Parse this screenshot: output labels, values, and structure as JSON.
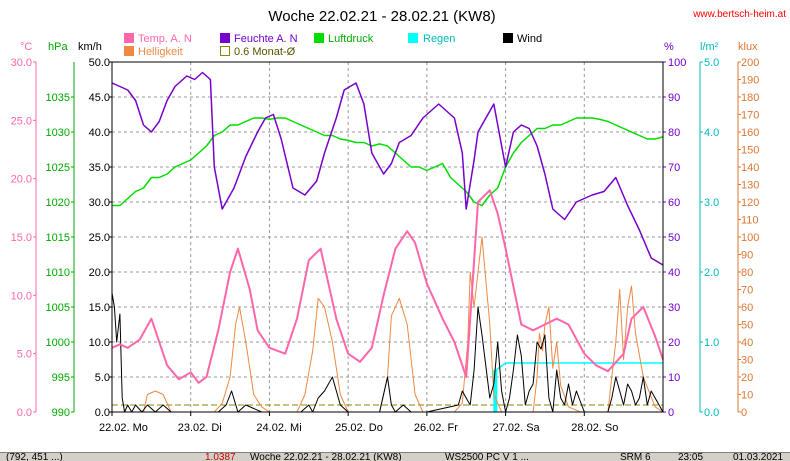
{
  "chart_data": {
    "type": "line",
    "title": "Woche 22.02.21 - 28.02.21 (KW8)",
    "watermark": "www.bertsch-heim.at",
    "axis_units": {
      "temp": "°C",
      "pressure": "hPa",
      "wind": "km/h",
      "humidity": "%",
      "rain": "l/m²",
      "brightness": "klux"
    },
    "axes": {
      "temp": {
        "min": 0,
        "max": 30,
        "step": 5,
        "labels": [
          "0.0",
          "5.0",
          "10.0",
          "15.0",
          "20.0",
          "25.0",
          "30.0"
        ],
        "color": "#ff66aa"
      },
      "pressure": {
        "min": 990,
        "max": 1040,
        "step": 5,
        "labels": [
          "990",
          "995",
          "1000",
          "1005",
          "1010",
          "1015",
          "1020",
          "1025",
          "1030",
          "1035"
        ],
        "color": "#00aa00"
      },
      "wind": {
        "min": 0,
        "max": 50,
        "step": 5,
        "labels": [
          "0.0",
          "5.0",
          "10.0",
          "15.0",
          "20.0",
          "25.0",
          "30.0",
          "35.0",
          "40.0",
          "45.0",
          "50.0"
        ],
        "color": "#000000"
      },
      "humidity": {
        "min": 0,
        "max": 100,
        "step": 10,
        "labels": [
          "0",
          "10",
          "20",
          "30",
          "40",
          "50",
          "60",
          "70",
          "80",
          "90",
          "100"
        ],
        "color": "#7700cc"
      },
      "rain": {
        "min": 0,
        "max": 5,
        "step": 1,
        "labels": [
          "0.0",
          "1.0",
          "2.0",
          "3.0",
          "4.0",
          "5.0"
        ],
        "color": "#00bbbb"
      },
      "brightness": {
        "min": 0,
        "max": 200,
        "step": 10,
        "labels": [
          "0",
          "10",
          "20",
          "30",
          "40",
          "50",
          "60",
          "70",
          "80",
          "90",
          "100",
          "110",
          "120",
          "130",
          "140",
          "150",
          "160",
          "170",
          "180",
          "190",
          "200"
        ],
        "color": "#dd7733"
      }
    },
    "x": {
      "min": 0,
      "max": 7,
      "tick_labels": [
        "22.02.  Mo",
        "23.02.  Di",
        "24.02.  Mi",
        "25.02.  Do",
        "26.02.  Fr",
        "27.02.  Sa",
        "28.02.  So"
      ]
    },
    "legend": [
      {
        "name": "Temp. A. N",
        "color": "#ff66aa",
        "style": "filled"
      },
      {
        "name": "Feuchte A. N",
        "color": "#7700cc",
        "style": "filled"
      },
      {
        "name": "Luftdruck",
        "color": "#00dd00",
        "style": "filled"
      },
      {
        "name": "Regen",
        "color": "#00ffff",
        "style": "filled"
      },
      {
        "name": "Wind",
        "color": "#000000",
        "style": "filled"
      },
      {
        "name": "Helligkeit",
        "color": "#ee8844",
        "style": "filled"
      },
      {
        "name": "0.6 Monat-Ø",
        "color": "#888800",
        "style": "outline"
      }
    ],
    "grid": true,
    "series": [
      {
        "name": "Temp. A. N",
        "axis": "temp",
        "color": "#ff66aa",
        "width": 2,
        "x": [
          0,
          0.1,
          0.2,
          0.35,
          0.5,
          0.7,
          0.85,
          1.0,
          1.1,
          1.2,
          1.35,
          1.5,
          1.6,
          1.75,
          1.85,
          2.0,
          2.2,
          2.35,
          2.5,
          2.65,
          2.85,
          3.0,
          3.15,
          3.3,
          3.45,
          3.6,
          3.75,
          3.85,
          4.0,
          4.2,
          4.35,
          4.5,
          4.55,
          4.65,
          4.8,
          4.9,
          5.0,
          5.2,
          5.35,
          5.5,
          5.65,
          5.8,
          6.0,
          6.15,
          6.3,
          6.5,
          6.6,
          6.75,
          6.9,
          7.0
        ],
        "y": [
          5.5,
          5.8,
          5.5,
          6.2,
          8,
          4,
          2.8,
          3.4,
          2.5,
          3,
          7,
          12,
          14,
          10.5,
          7,
          5.5,
          5,
          8,
          13,
          14,
          8,
          5,
          4.3,
          5.5,
          10,
          14,
          15.5,
          14.5,
          11,
          8,
          6,
          3,
          8,
          18,
          19,
          17,
          14,
          7.5,
          7,
          7.5,
          8,
          7.5,
          5,
          4,
          3.5,
          5,
          8,
          9,
          6.5,
          4.5
        ]
      },
      {
        "name": "Feuchte A. N",
        "axis": "humidity",
        "color": "#7700cc",
        "width": 1.5,
        "x": [
          0,
          0.1,
          0.2,
          0.3,
          0.4,
          0.5,
          0.6,
          0.7,
          0.8,
          0.95,
          1.05,
          1.15,
          1.25,
          1.3,
          1.4,
          1.55,
          1.7,
          1.85,
          1.95,
          2.05,
          2.15,
          2.3,
          2.45,
          2.6,
          2.7,
          2.85,
          2.95,
          3.1,
          3.2,
          3.3,
          3.45,
          3.55,
          3.65,
          3.8,
          3.95,
          4.05,
          4.15,
          4.25,
          4.35,
          4.45,
          4.5,
          4.6,
          4.65,
          4.75,
          4.85,
          5.0,
          5.1,
          5.2,
          5.3,
          5.4,
          5.5,
          5.6,
          5.75,
          5.9,
          6.1,
          6.25,
          6.4,
          6.55,
          6.7,
          6.85,
          7.0
        ],
        "y": [
          94,
          93,
          92,
          89,
          82,
          80,
          83,
          89,
          93,
          96,
          95,
          97,
          95,
          70,
          58,
          64,
          73,
          80,
          84,
          85,
          78,
          64,
          62,
          66,
          74,
          84,
          92,
          94,
          88,
          74,
          68,
          71,
          77,
          79,
          84,
          86,
          88,
          86,
          84,
          74,
          58,
          72,
          80,
          84,
          88,
          70,
          80,
          82,
          81,
          76,
          68,
          58,
          55,
          60,
          62,
          63,
          67,
          59,
          52,
          44,
          42
        ]
      },
      {
        "name": "Luftdruck",
        "axis": "pressure",
        "color": "#00dd00",
        "width": 1.5,
        "x": [
          0,
          0.1,
          0.2,
          0.3,
          0.4,
          0.5,
          0.6,
          0.7,
          0.8,
          0.9,
          1.0,
          1.1,
          1.2,
          1.3,
          1.4,
          1.5,
          1.6,
          1.7,
          1.8,
          1.9,
          2.0,
          2.1,
          2.2,
          2.3,
          2.4,
          2.5,
          2.6,
          2.7,
          2.8,
          2.9,
          3.0,
          3.1,
          3.2,
          3.3,
          3.4,
          3.5,
          3.6,
          3.7,
          3.8,
          3.9,
          4.0,
          4.1,
          4.2,
          4.3,
          4.4,
          4.5,
          4.6,
          4.7,
          4.8,
          4.9,
          5.0,
          5.1,
          5.2,
          5.3,
          5.4,
          5.5,
          5.6,
          5.7,
          5.8,
          5.9,
          6.0,
          6.1,
          6.2,
          6.3,
          6.4,
          6.5,
          6.6,
          6.7,
          6.8,
          6.9,
          7.0
        ],
        "y": [
          1019.5,
          1019.5,
          1020.5,
          1021.5,
          1022,
          1023.5,
          1023.5,
          1024,
          1025,
          1025.5,
          1026,
          1027,
          1028,
          1029.5,
          1030,
          1031,
          1031,
          1031.5,
          1032,
          1032,
          1031.8,
          1032,
          1032,
          1031.5,
          1031,
          1030.5,
          1030,
          1029.5,
          1029.5,
          1029,
          1028.8,
          1028.5,
          1028.5,
          1028,
          1028.3,
          1028,
          1027,
          1026,
          1025,
          1025,
          1024.5,
          1025,
          1025.5,
          1023.5,
          1022.5,
          1021.5,
          1020,
          1019.5,
          1021,
          1022,
          1025,
          1027,
          1028.5,
          1029.5,
          1030.5,
          1030.5,
          1031,
          1031,
          1031.5,
          1032,
          1032,
          1032,
          1031.8,
          1031.5,
          1031,
          1030.5,
          1030,
          1029.5,
          1029,
          1029,
          1029.3
        ]
      },
      {
        "name": "Helligkeit",
        "axis": "brightness",
        "color": "#ee8844",
        "width": 1,
        "x": [
          0,
          0.4,
          0.45,
          0.55,
          0.65,
          0.75,
          1.3,
          1.4,
          1.5,
          1.57,
          1.62,
          1.7,
          1.75,
          1.8,
          1.9,
          2.0,
          2.35,
          2.45,
          2.55,
          2.62,
          2.7,
          2.8,
          2.9,
          3.0,
          3.4,
          3.5,
          3.55,
          3.65,
          3.75,
          3.85,
          3.95,
          4.35,
          4.45,
          4.52,
          4.55,
          4.6,
          4.65,
          4.7,
          4.75,
          4.8,
          4.85,
          4.95,
          5.35,
          5.4,
          5.43,
          5.47,
          5.5,
          5.55,
          5.6,
          5.65,
          5.7,
          5.8,
          5.95,
          6.3,
          6.35,
          6.4,
          6.45,
          6.5,
          6.55,
          6.6,
          6.65,
          6.75,
          6.9,
          7.0
        ],
        "y": [
          0,
          0,
          10,
          12,
          10,
          0,
          0,
          5,
          20,
          50,
          60,
          40,
          25,
          10,
          3,
          0,
          0,
          10,
          35,
          65,
          60,
          40,
          10,
          0,
          0,
          20,
          55,
          65,
          50,
          10,
          0,
          0,
          5,
          40,
          80,
          60,
          80,
          100,
          75,
          50,
          10,
          0,
          0,
          20,
          45,
          35,
          50,
          60,
          25,
          40,
          15,
          3,
          0,
          0,
          20,
          40,
          70,
          30,
          60,
          72,
          45,
          20,
          3,
          0
        ]
      },
      {
        "name": "Wind",
        "axis": "wind",
        "color": "#000000",
        "width": 1,
        "x": [
          0,
          0.03,
          0.06,
          0.1,
          0.13,
          0.16,
          0.2,
          0.25,
          0.3,
          0.38,
          0.45,
          0.55,
          0.65,
          0.75,
          1.0,
          1.35,
          1.45,
          1.52,
          1.6,
          1.7,
          1.9,
          2.0,
          2.4,
          2.5,
          2.55,
          2.62,
          2.7,
          2.8,
          2.9,
          3.0,
          3.4,
          3.5,
          3.55,
          3.6,
          3.7,
          3.8,
          3.9,
          4.0,
          4.4,
          4.45,
          4.5,
          4.55,
          4.6,
          4.65,
          4.7,
          4.8,
          4.85,
          4.9,
          4.95,
          5.0,
          5.05,
          5.1,
          5.15,
          5.2,
          5.25,
          5.3,
          5.35,
          5.4,
          5.45,
          5.5,
          5.55,
          5.6,
          5.65,
          5.7,
          5.75,
          5.8,
          5.85,
          5.9,
          6.0,
          6.3,
          6.35,
          6.4,
          6.45,
          6.5,
          6.55,
          6.6,
          6.65,
          6.7,
          6.75,
          6.8,
          6.85,
          7.0
        ],
        "y": [
          17,
          15,
          10,
          14,
          2,
          0,
          1,
          0,
          1,
          0,
          1,
          0,
          1,
          0,
          0,
          0,
          1,
          3,
          0,
          1,
          0,
          0,
          0,
          1,
          0,
          2,
          3,
          5,
          1,
          0,
          0,
          5,
          1,
          0,
          1,
          0,
          0,
          0,
          1,
          3,
          2,
          1,
          6,
          15,
          11,
          2,
          4,
          10,
          3,
          0,
          2,
          6,
          11,
          8,
          1,
          3,
          4,
          10,
          9,
          11,
          2,
          0,
          6,
          2,
          1,
          4,
          1,
          3,
          0,
          0,
          2,
          5,
          3,
          1,
          4,
          3,
          1,
          2,
          5,
          1,
          3,
          0
        ]
      }
    ],
    "monthly_mean": {
      "name": "0.6 Monat-Ø",
      "axis": "temp",
      "value": 0.6
    },
    "rain_series": {
      "name": "Regen",
      "axis": "rain",
      "color": "#00ffff",
      "x": [
        4.85,
        4.88,
        5.0,
        7.0
      ],
      "y": [
        0.2,
        0.6,
        0.7,
        0.7
      ],
      "bar": {
        "x": 4.87,
        "value": 0.6
      }
    }
  },
  "statusbar": {
    "coords": "(792, 451 ...)",
    "value": "1.0387",
    "title": "Woche 22.02.21 - 28.02.21 (KW8)",
    "station": "WS2500 PC V 1 ...",
    "item": "SRM 6",
    "time": "23:05",
    "date": "01.03.2021"
  }
}
